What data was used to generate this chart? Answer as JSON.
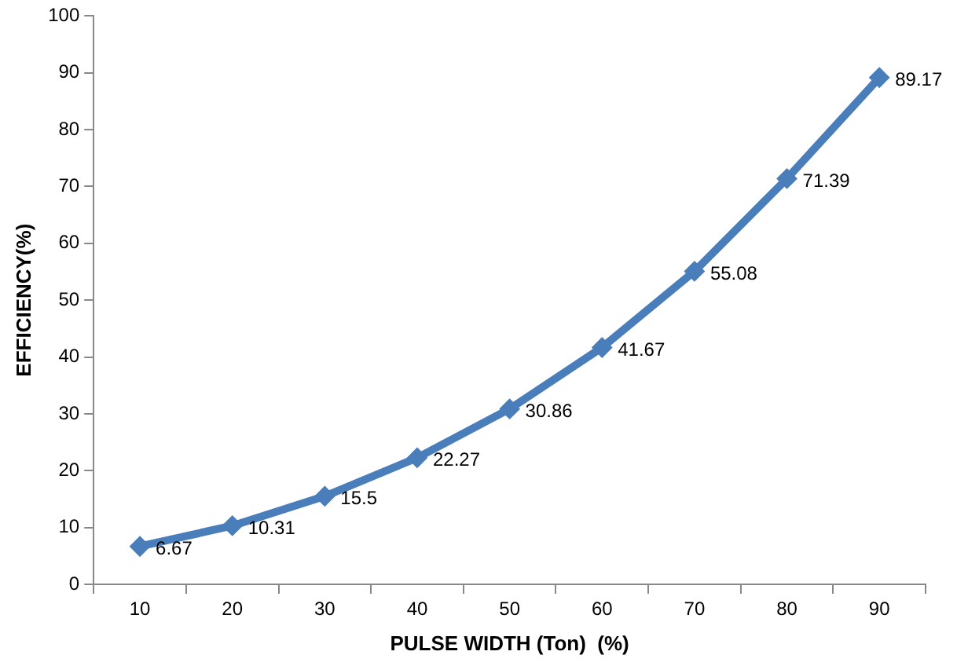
{
  "chart_data": {
    "type": "line",
    "xlabel": "PULSE WIDTH (Ton)  (%)",
    "ylabel": "EFFICIENCY(%)",
    "categories": [
      "10",
      "20",
      "30",
      "40",
      "50",
      "60",
      "70",
      "80",
      "90"
    ],
    "series": [
      {
        "color": "#4a7ebb",
        "values": [
          6.67,
          10.31,
          15.5,
          22.27,
          30.86,
          41.67,
          55.08,
          71.39,
          89.17
        ]
      }
    ],
    "ylim": [
      0,
      100
    ],
    "yticks": [
      0,
      10,
      20,
      30,
      40,
      50,
      60,
      70,
      80,
      90,
      100
    ],
    "grid": false,
    "legend": false,
    "marker": "diamond",
    "line_style": "solid",
    "data_labels": true
  }
}
